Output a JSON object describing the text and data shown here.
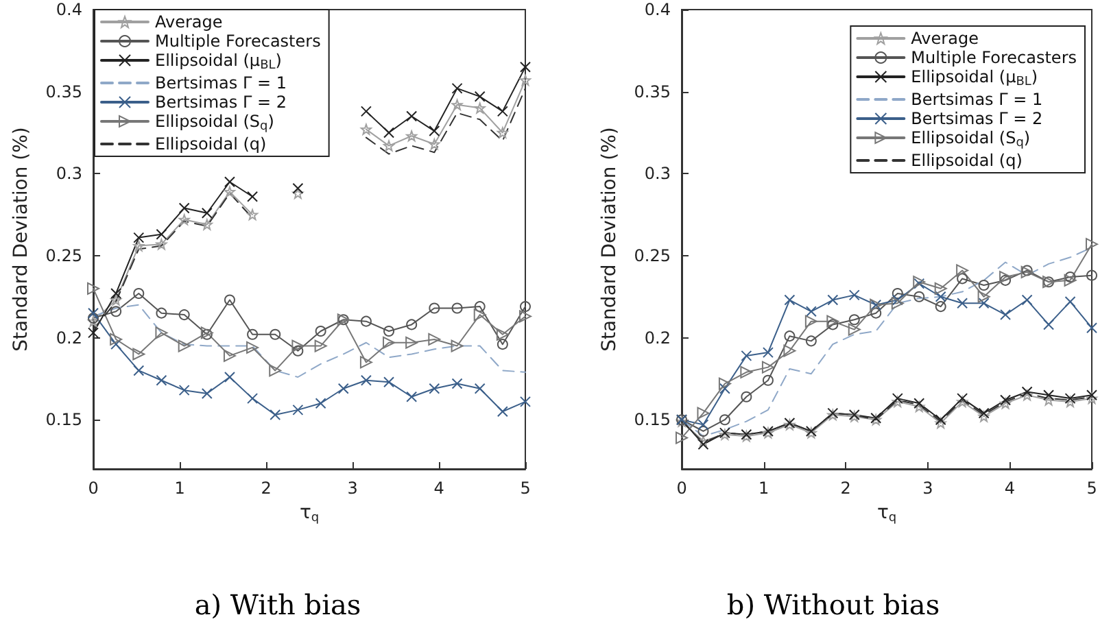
{
  "chart_data": [
    {
      "type": "line",
      "title": "a) With bias",
      "xlabel": "τ$_{q}$",
      "ylabel": "Standard Deviation (%)",
      "x": [
        0,
        0.263,
        0.526,
        0.789,
        1.053,
        1.316,
        1.579,
        1.842,
        2.105,
        2.368,
        2.632,
        2.895,
        3.158,
        3.421,
        3.684,
        3.947,
        4.211,
        4.474,
        4.737,
        5
      ],
      "xlim": [
        0,
        5
      ],
      "xticks": [
        0,
        1,
        2,
        3,
        4,
        5
      ],
      "ylim": [
        0.12,
        0.4
      ],
      "yticks": [
        0.15,
        0.2,
        0.25,
        0.3,
        0.35,
        0.4
      ],
      "grid": false,
      "legend": "top left",
      "series": [
        {
          "name": "Average",
          "color": "#a0a0a0",
          "marker": "star",
          "line_style": "solid",
          "values": [
            0.21,
            0.223,
            0.256,
            0.257,
            0.272,
            0.269,
            0.289,
            0.275,
            null,
            0.288,
            null,
            null,
            0.327,
            0.317,
            0.323,
            0.318,
            0.342,
            0.34,
            0.325,
            0.357
          ]
        },
        {
          "name": "Multiple Forecasters",
          "color": "#555555",
          "marker": "circle",
          "line_style": "solid",
          "values": [
            0.212,
            0.216,
            0.227,
            0.215,
            0.214,
            0.202,
            0.223,
            0.202,
            0.202,
            0.192,
            0.204,
            0.211,
            0.21,
            0.204,
            0.208,
            0.218,
            0.218,
            0.219,
            0.196,
            0.219
          ]
        },
        {
          "name": "Ellipsoidal (μ$_{BL}$)",
          "color": "#222222",
          "marker": "cross",
          "line_style": "solid",
          "values": [
            0.203,
            0.227,
            0.261,
            0.263,
            0.279,
            0.276,
            0.295,
            0.286,
            null,
            0.291,
            null,
            null,
            0.338,
            0.325,
            0.335,
            0.326,
            0.352,
            0.347,
            0.338,
            0.365
          ]
        },
        {
          "name": "Bertsimas Γ = 1",
          "color": "#8fa8c8",
          "marker": "none",
          "line_style": "dashed",
          "values": [
            0.213,
            0.218,
            0.22,
            0.203,
            0.196,
            0.195,
            0.195,
            0.195,
            0.18,
            0.176,
            0.184,
            0.19,
            0.197,
            0.188,
            0.19,
            0.193,
            0.195,
            0.195,
            0.18,
            0.179
          ]
        },
        {
          "name": "Bertsimas Γ = 2",
          "color": "#3b5f8a",
          "marker": "cross",
          "line_style": "solid",
          "values": [
            0.215,
            0.196,
            0.18,
            0.174,
            0.168,
            0.166,
            0.176,
            0.163,
            0.153,
            0.156,
            0.16,
            0.169,
            0.174,
            0.173,
            0.164,
            0.169,
            0.172,
            0.169,
            0.155,
            0.161
          ]
        },
        {
          "name": "Ellipsoidal (S$_{q}$)",
          "color": "#777777",
          "marker": "triangle",
          "line_style": "solid",
          "values": [
            0.23,
            0.199,
            0.19,
            0.203,
            0.195,
            0.203,
            0.189,
            0.194,
            0.18,
            0.195,
            0.195,
            0.211,
            0.185,
            0.197,
            0.197,
            0.199,
            0.195,
            0.214,
            0.202,
            0.213
          ]
        },
        {
          "name": "Ellipsoidal (q)",
          "color": "#333333",
          "marker": "none",
          "line_style": "dashed",
          "values": [
            0.205,
            0.222,
            0.254,
            0.256,
            0.271,
            0.268,
            0.288,
            0.273,
            null,
            null,
            null,
            null,
            0.322,
            0.312,
            0.317,
            0.313,
            0.337,
            0.333,
            0.32,
            0.352
          ]
        }
      ]
    },
    {
      "type": "line",
      "title": "b) Without bias",
      "xlabel": "τ$_{q}$",
      "ylabel": "Standard Deviation (%)",
      "x": [
        0,
        0.263,
        0.526,
        0.789,
        1.053,
        1.316,
        1.579,
        1.842,
        2.105,
        2.368,
        2.632,
        2.895,
        3.158,
        3.421,
        3.684,
        3.947,
        4.211,
        4.474,
        4.737,
        5
      ],
      "xlim": [
        0,
        5
      ],
      "xticks": [
        0,
        1,
        2,
        3,
        4,
        5
      ],
      "ylim": [
        0.12,
        0.4
      ],
      "yticks": [
        0.15,
        0.2,
        0.25,
        0.3,
        0.35,
        0.4
      ],
      "grid": false,
      "legend": "top right",
      "series": [
        {
          "name": "Average",
          "color": "#a0a0a0",
          "marker": "star",
          "line_style": "solid",
          "values": [
            0.149,
            0.137,
            0.141,
            0.14,
            0.142,
            0.147,
            0.142,
            0.153,
            0.152,
            0.15,
            0.161,
            0.158,
            0.148,
            0.161,
            0.152,
            0.16,
            0.165,
            0.162,
            0.161,
            0.163
          ]
        },
        {
          "name": "Multiple Forecasters",
          "color": "#555555",
          "marker": "circle",
          "line_style": "solid",
          "values": [
            0.15,
            0.143,
            0.15,
            0.164,
            0.174,
            0.201,
            0.198,
            0.208,
            0.211,
            0.215,
            0.227,
            0.225,
            0.219,
            0.236,
            0.232,
            0.235,
            0.241,
            0.234,
            0.237,
            0.238
          ]
        },
        {
          "name": "Ellipsoidal (μ$_{BL}$)",
          "color": "#222222",
          "marker": "cross",
          "line_style": "solid",
          "values": [
            0.15,
            0.135,
            0.142,
            0.141,
            0.143,
            0.148,
            0.143,
            0.154,
            0.153,
            0.151,
            0.163,
            0.16,
            0.15,
            0.163,
            0.154,
            0.162,
            0.167,
            0.165,
            0.163,
            0.165
          ]
        },
        {
          "name": "Bertsimas Γ = 1",
          "color": "#8fa8c8",
          "marker": "none",
          "line_style": "dashed",
          "values": [
            0.15,
            0.14,
            0.144,
            0.149,
            0.156,
            0.181,
            0.178,
            0.196,
            0.202,
            0.204,
            0.221,
            0.224,
            0.225,
            0.228,
            0.235,
            0.246,
            0.238,
            0.245,
            0.249,
            0.255
          ]
        },
        {
          "name": "Bertsimas Γ = 2",
          "color": "#3b5f8a",
          "marker": "cross",
          "line_style": "solid",
          "values": [
            0.15,
            0.147,
            0.169,
            0.189,
            0.191,
            0.223,
            0.216,
            0.223,
            0.226,
            0.22,
            0.223,
            0.233,
            0.225,
            0.221,
            0.221,
            0.214,
            0.223,
            0.208,
            0.222,
            0.206
          ]
        },
        {
          "name": "Ellipsoidal (S$_{q}$)",
          "color": "#777777",
          "marker": "triangle",
          "line_style": "solid",
          "values": [
            0.139,
            0.154,
            0.172,
            0.179,
            0.182,
            0.192,
            0.21,
            0.21,
            0.205,
            0.22,
            0.221,
            0.234,
            0.23,
            0.241,
            0.225,
            0.237,
            0.24,
            0.234,
            0.235,
            0.257
          ]
        },
        {
          "name": "Ellipsoidal (q)",
          "color": "#333333",
          "marker": "none",
          "line_style": "dashed",
          "values": [
            0.149,
            0.136,
            0.142,
            0.141,
            0.143,
            0.148,
            0.143,
            0.154,
            0.153,
            0.15,
            0.162,
            0.159,
            0.149,
            0.162,
            0.153,
            0.161,
            0.166,
            0.163,
            0.162,
            0.164
          ]
        }
      ]
    }
  ]
}
